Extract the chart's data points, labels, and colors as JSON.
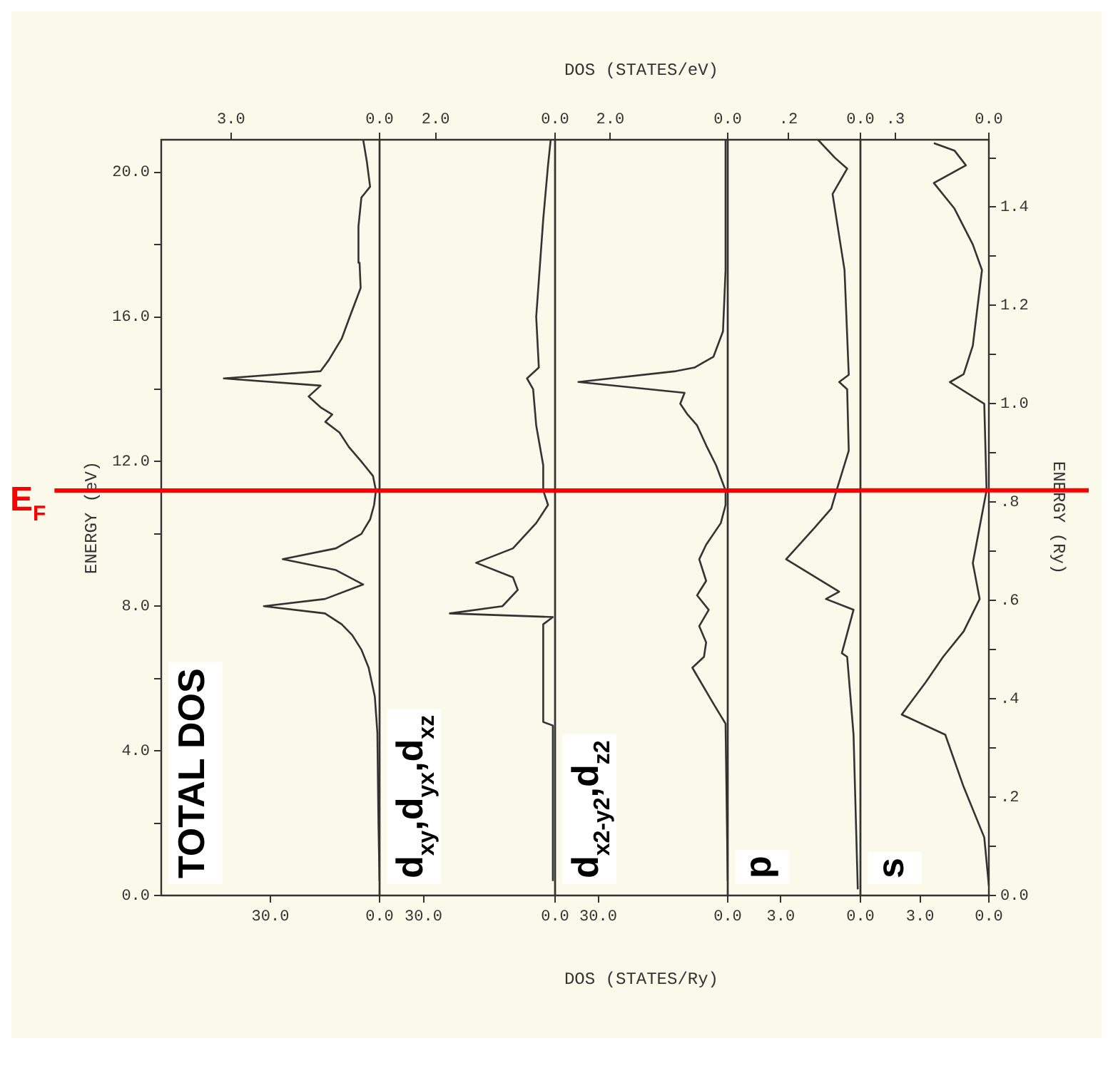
{
  "chart_data": [
    {
      "type": "line",
      "ylabel": "ENERGY (eV)",
      "annotations": [
        "TOTAL DOS"
      ],
      "marker": "none",
      "xlim": [
        60,
        0
      ],
      "xticks": [
        {
          "value": 30,
          "label": "30.0"
        },
        {
          "value": 0,
          "label": "0.0"
        }
      ],
      "x2lim": [
        4.41,
        0
      ],
      "x2ticks": [
        {
          "value": 3,
          "label": "3.0"
        },
        {
          "value": 0,
          "label": "0.0"
        }
      ],
      "ylim": [
        0,
        20.9
      ],
      "yticks": [
        {
          "value": 0,
          "label": "0.0"
        },
        {
          "value": 2,
          "label": null
        },
        {
          "value": 4,
          "label": "4.0"
        },
        {
          "value": 6,
          "label": null
        },
        {
          "value": 8,
          "label": "8.0"
        },
        {
          "value": 10,
          "label": null
        },
        {
          "value": 12,
          "label": "12.0"
        },
        {
          "value": 14,
          "label": null
        },
        {
          "value": 16,
          "label": "16.0"
        },
        {
          "value": 18,
          "label": null
        },
        {
          "value": 20,
          "label": "20.0"
        }
      ],
      "ref_lines": [
        {
          "axis": "y",
          "value": 11.2,
          "label": "E$_{F}$",
          "color": "#ff0000"
        }
      ],
      "series": [
        {
          "color": "#333333",
          "x": [
            0,
            0.3,
            0.6,
            1.3,
            3,
            5,
            7.5,
            10.4,
            15,
            31.8,
            15,
            4.5,
            12,
            26.6,
            12,
            5,
            2.6,
            1.5,
            1,
            1.8,
            5,
            8.4,
            11,
            14.9,
            13,
            16.2,
            19.5,
            16.2,
            42.8,
            16.2,
            14,
            10.4,
            8.2,
            5.2,
            5.5,
            5.8,
            5,
            2.6,
            3.5,
            4.5
          ],
          "values": [
            0.4,
            2,
            4.5,
            5.5,
            6.3,
            6.8,
            7.2,
            7.5,
            7.8,
            8.0,
            8.2,
            8.6,
            9.0,
            9.3,
            9.6,
            10.0,
            10.4,
            10.8,
            11.2,
            11.6,
            12.0,
            12.4,
            12.8,
            13.1,
            13.3,
            13.5,
            13.8,
            14.1,
            14.3,
            14.5,
            14.8,
            15.4,
            16.0,
            16.8,
            17.5,
            18.5,
            19.3,
            19.6,
            20.3,
            20.9
          ]
        }
      ]
    },
    {
      "type": "line",
      "annotations": [
        "d$_{xy}$,d$_{yx}$,d$_{xz}$"
      ],
      "marker": "none",
      "tick_labels": "x",
      "xlim": [
        40,
        0
      ],
      "xticks": [
        {
          "value": 30,
          "label": "30.0"
        },
        {
          "value": 0,
          "label": "0.0"
        }
      ],
      "x2lim": [
        2.94,
        0
      ],
      "x2ticks": [
        {
          "value": 2,
          "label": "2.0"
        },
        {
          "value": 0,
          "label": "0.0"
        }
      ],
      "ylim": [
        0,
        20.9
      ],
      "ref_lines": [
        {
          "axis": "y",
          "value": 11.2,
          "color": "#ff0000"
        }
      ],
      "series": [
        {
          "color": "#333333",
          "x": [
            0.5,
            0.5,
            2.7,
            2.7,
            0.5,
            24,
            12,
            8.5,
            9.6,
            18,
            9.6,
            4.3,
            1.6,
            2.7,
            2.7,
            4.3,
            5,
            6.4,
            3.7,
            4.3,
            2.7,
            1.6,
            1
          ],
          "values": [
            0.4,
            4.7,
            4.8,
            7.5,
            7.7,
            7.8,
            8.0,
            8.45,
            8.8,
            9.2,
            9.6,
            10.3,
            10.8,
            11.2,
            11.9,
            13,
            14.0,
            14.3,
            14.6,
            16,
            18.7,
            20.2,
            20.9
          ]
        }
      ]
    },
    {
      "type": "line",
      "xlabel": "DOS (STATES/Ry)",
      "x2label": "DOS (STATES/eV)",
      "annotations": [
        "d$_{x2-y2}$,d$_{z2}$"
      ],
      "marker": "none",
      "tick_labels": "x",
      "xlim": [
        40,
        0
      ],
      "xticks": [
        {
          "value": 30,
          "label": "30.0"
        },
        {
          "value": 0,
          "label": "0.0"
        }
      ],
      "x2lim": [
        2.94,
        0
      ],
      "x2ticks": [
        {
          "value": 2,
          "label": "2.0"
        },
        {
          "value": 0,
          "label": "0.0"
        }
      ],
      "ylim": [
        0,
        20.9
      ],
      "ref_lines": [
        {
          "axis": "y",
          "value": 11.2,
          "color": "#ff0000"
        }
      ],
      "series": [
        {
          "color": "#333333",
          "x": [
            0,
            0.5,
            3.3,
            8.2,
            5.5,
            5,
            6.6,
            4.4,
            7.1,
            5,
            6.6,
            5,
            1.6,
            0.5,
            0.5,
            2.7,
            5,
            7.1,
            9.3,
            11,
            10,
            34.6,
            12,
            7.7,
            3.3,
            1.1,
            0.5,
            0.5
          ],
          "values": [
            0.4,
            4.75,
            5.3,
            6.3,
            6.6,
            7.0,
            7.45,
            7.9,
            8.3,
            8.7,
            9.3,
            9.7,
            10.3,
            10.8,
            11.2,
            11.9,
            12.45,
            13.0,
            13.3,
            13.6,
            13.9,
            14.2,
            14.5,
            14.6,
            14.9,
            15.6,
            17.3,
            20.9
          ]
        }
      ]
    },
    {
      "type": "line",
      "annotations": [
        "p"
      ],
      "marker": "none",
      "tick_labels": "x",
      "xlim": [
        5,
        0
      ],
      "xticks": [
        {
          "value": 3,
          "label": "3.0"
        },
        {
          "value": 0,
          "label": "0.0"
        }
      ],
      "x2lim": [
        0.368,
        0
      ],
      "x2ticks": [
        {
          "value": 0.2,
          "label": ".2"
        },
        {
          "value": 0,
          "label": "0.0"
        }
      ],
      "ylim": [
        0,
        20.9
      ],
      "ref_lines": [
        {
          "axis": "y",
          "value": 11.2,
          "color": "#ff0000"
        }
      ],
      "series": [
        {
          "color": "#333333",
          "x": [
            0.1,
            0.26,
            0.5,
            0.7,
            0.26,
            1.3,
            0.8,
            2.8,
            1.75,
            1.1,
            0.9,
            0.44,
            0.5,
            0.8,
            0.44,
            0.6,
            1.05,
            0.5,
            0.96,
            1.6
          ],
          "values": [
            0.17,
            4.45,
            6.6,
            6.7,
            7.9,
            8.2,
            8.4,
            9.3,
            10.15,
            10.7,
            11.2,
            12.3,
            14.0,
            14.2,
            14.4,
            17.3,
            19.4,
            20.1,
            20.4,
            20.9
          ]
        }
      ]
    },
    {
      "type": "line",
      "y2label": "ENERGY (Ry)",
      "annotations": [
        "s"
      ],
      "marker": "none",
      "xlim": [
        5.6,
        0
      ],
      "xticks": [
        {
          "value": 3,
          "label": "3.0"
        },
        {
          "value": 0,
          "label": "0.0"
        }
      ],
      "x2lim": [
        0.412,
        0
      ],
      "x2ticks": [
        {
          "value": 0.3,
          "label": ".3"
        },
        {
          "value": 0,
          "label": "0.0"
        }
      ],
      "y2lim": [
        0,
        1.537
      ],
      "y2ticks": [
        {
          "value": 0,
          "label": "0.0"
        },
        {
          "value": 0.1,
          "label": null
        },
        {
          "value": 0.2,
          "label": ".2"
        },
        {
          "value": 0.3,
          "label": null
        },
        {
          "value": 0.4,
          "label": ".4"
        },
        {
          "value": 0.5,
          "label": null
        },
        {
          "value": 0.6,
          "label": ".6"
        },
        {
          "value": 0.7,
          "label": null
        },
        {
          "value": 0.8,
          "label": ".8"
        },
        {
          "value": 0.9,
          "label": null
        },
        {
          "value": 1.0,
          "label": "1.0"
        },
        {
          "value": 1.1,
          "label": null
        },
        {
          "value": 1.2,
          "label": "1.2"
        },
        {
          "value": 1.3,
          "label": null
        },
        {
          "value": 1.4,
          "label": "1.4"
        },
        {
          "value": 1.5,
          "label": null
        }
      ],
      "ref_lines": [
        {
          "axis": "y2",
          "value": 0.824,
          "color": "#ff0000"
        }
      ],
      "series": [
        {
          "color": "#333333",
          "axis": "y2",
          "x": [
            0,
            0.2,
            1.1,
            1.9,
            3.8,
            2.75,
            2.0,
            1.1,
            0.4,
            0.7,
            0.4,
            0.1,
            0.2,
            1.7,
            1.1,
            0.7,
            0.3,
            0.7,
            1.5,
            2.4,
            1.0,
            1.5,
            2.4
          ],
          "values": [
            0.02,
            0.118,
            0.221,
            0.327,
            0.368,
            0.434,
            0.485,
            0.537,
            0.603,
            0.676,
            0.75,
            0.824,
            1.0,
            1.044,
            1.06,
            1.118,
            1.272,
            1.324,
            1.397,
            1.449,
            1.485,
            1.515,
            1.53
          ]
        }
      ]
    }
  ]
}
